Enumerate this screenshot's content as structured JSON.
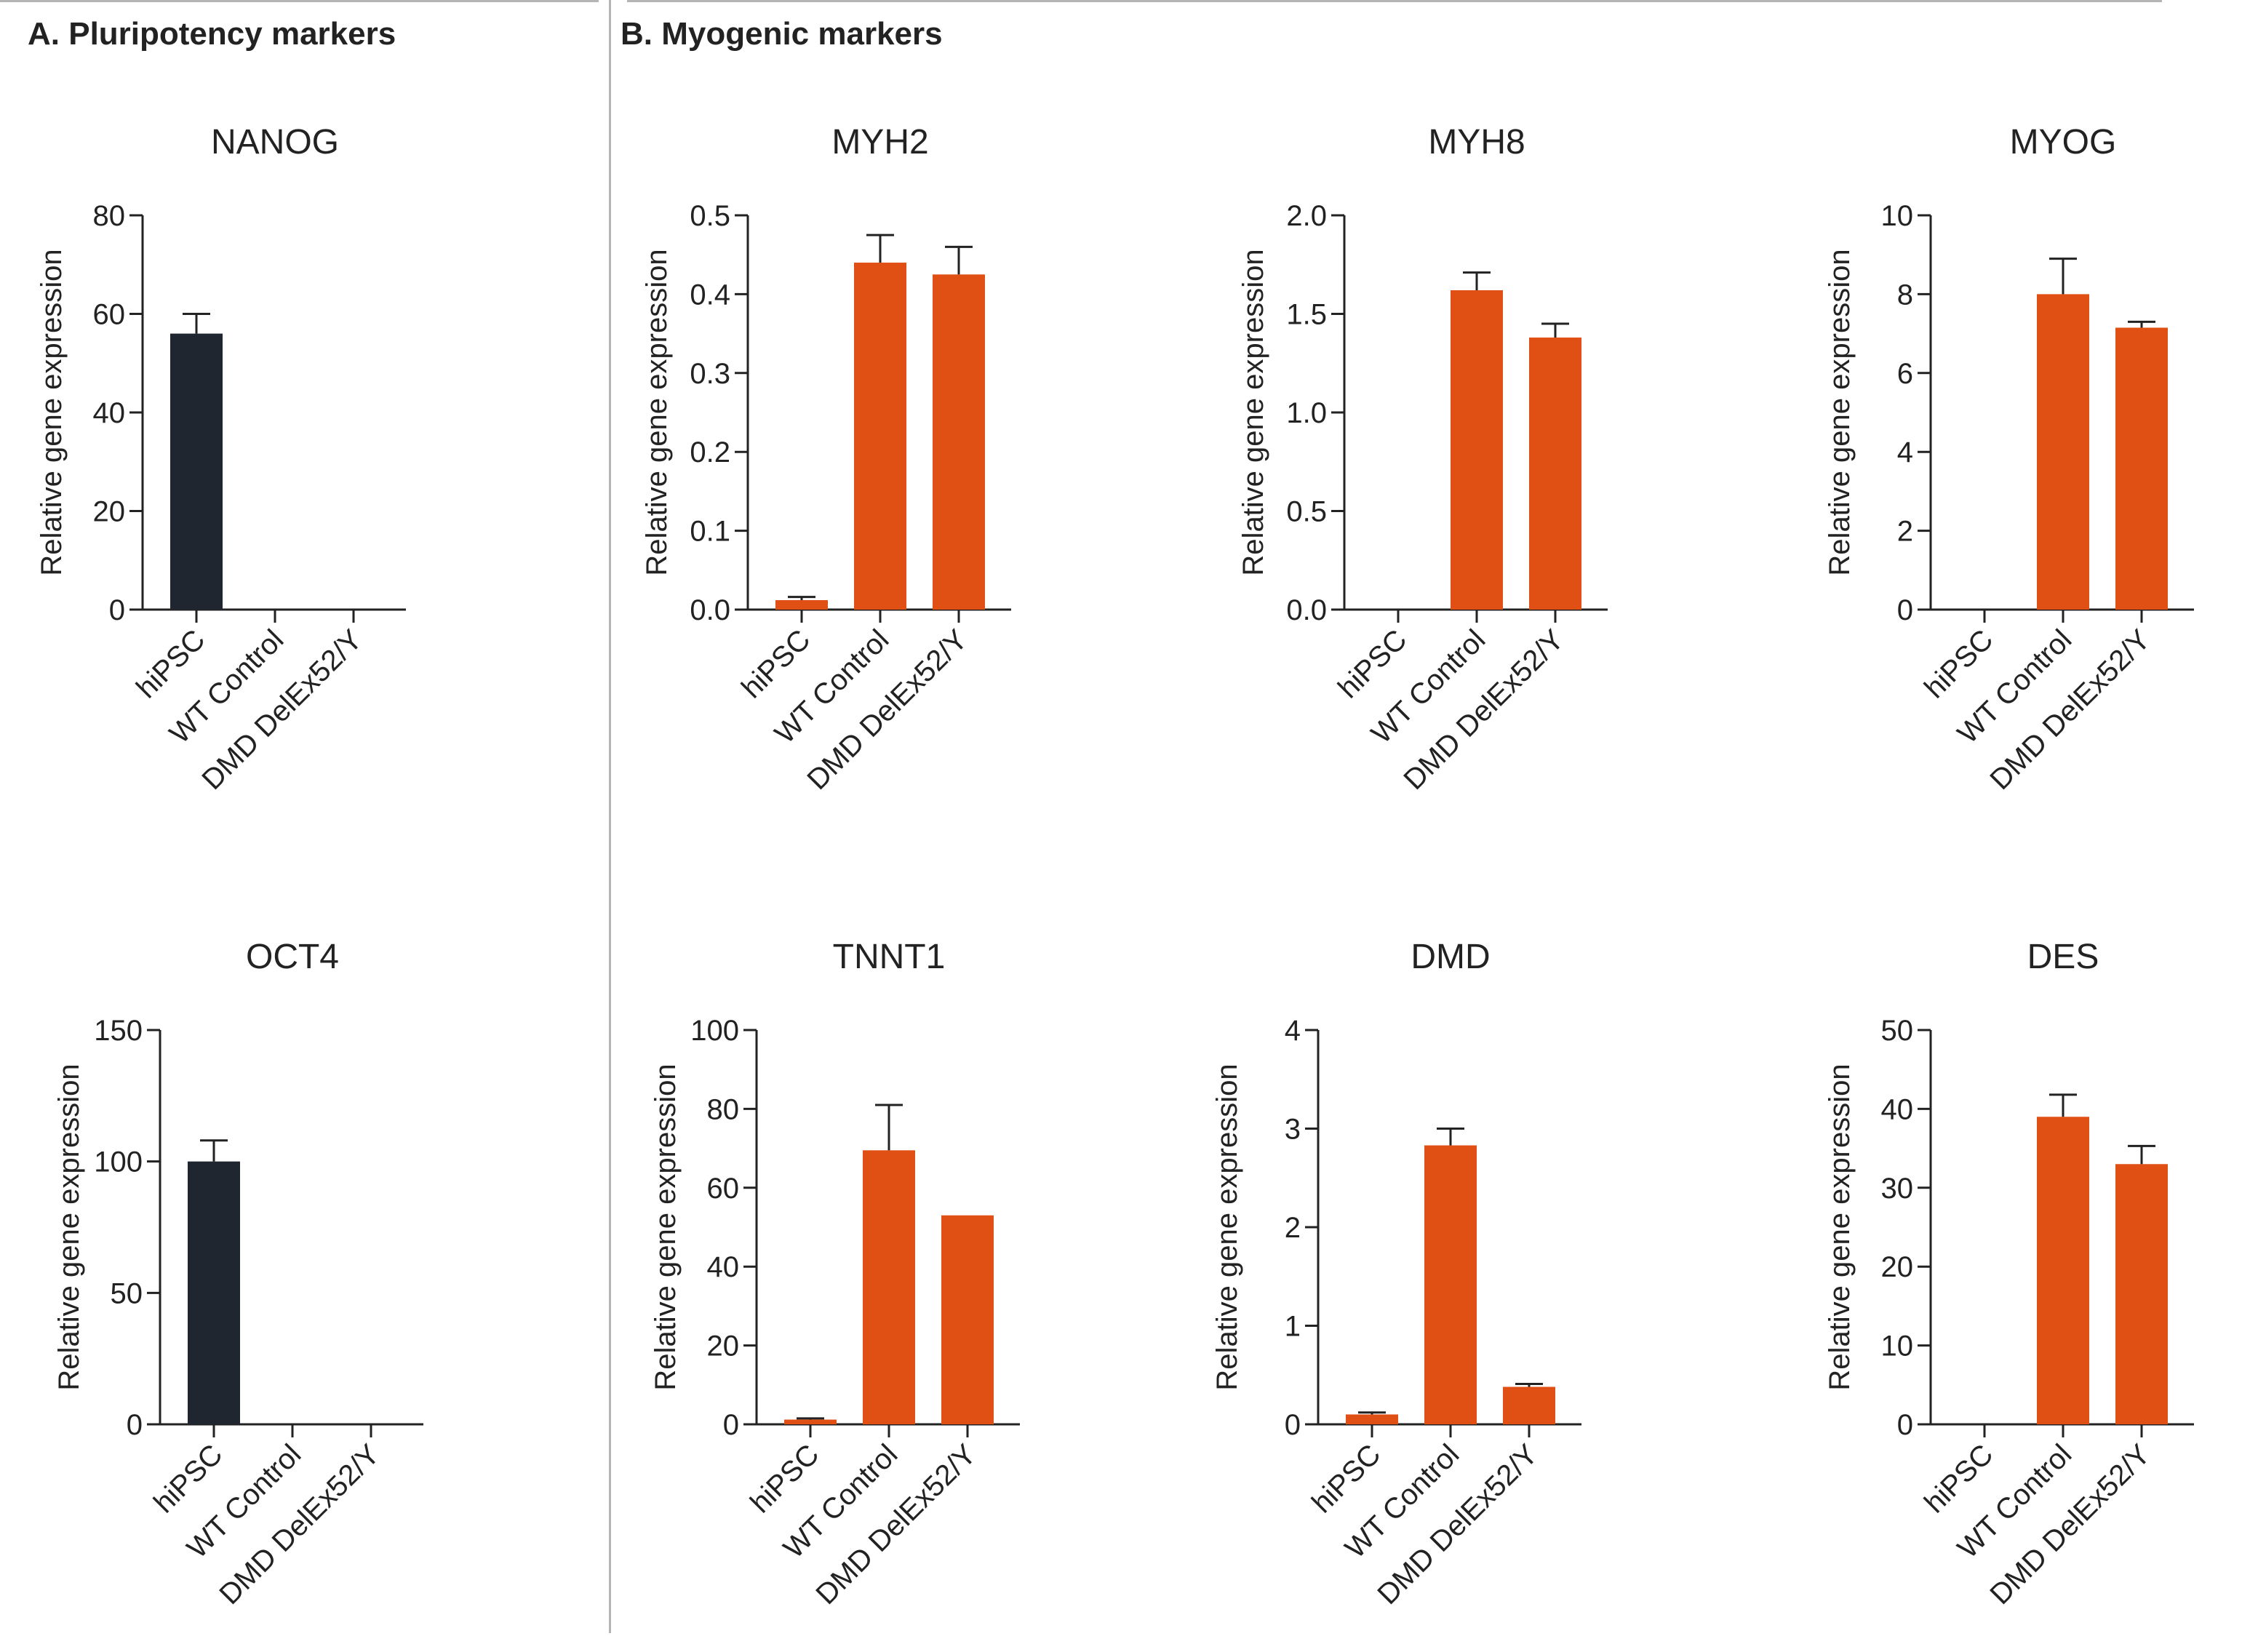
{
  "sections": {
    "a_title": "A. Pluripotency markers",
    "b_title": "B. Myogenic markers"
  },
  "colors": {
    "pluripotency_bar": "#1f2630",
    "myogenic_bar": "#e05015",
    "axis": "#222222"
  },
  "chart_data": [
    {
      "type": "bar",
      "title": "NANOG",
      "xlabel": "",
      "ylabel": "Relative gene expression",
      "categories": [
        "hiPSC",
        "WT Control",
        "DMD DelEx52/Y"
      ],
      "values": [
        56,
        0,
        0
      ],
      "errors": [
        4,
        0,
        0
      ],
      "ylim": [
        0,
        80
      ],
      "yticks": [
        "0",
        "20",
        "40",
        "60",
        "80"
      ],
      "color": "#1f2630"
    },
    {
      "type": "bar",
      "title": "MYH2",
      "xlabel": "",
      "ylabel": "Relative gene expression",
      "categories": [
        "hiPSC",
        "WT Control",
        "DMD DelEx52/Y"
      ],
      "values": [
        0.012,
        0.44,
        0.425
      ],
      "errors": [
        0.004,
        0.035,
        0.035
      ],
      "ylim": [
        0,
        0.5
      ],
      "yticks": [
        "0.0",
        "0.1",
        "0.2",
        "0.3",
        "0.4",
        "0.5"
      ],
      "color": "#e05015"
    },
    {
      "type": "bar",
      "title": "MYH8",
      "xlabel": "",
      "ylabel": "Relative gene expression",
      "categories": [
        "hiPSC",
        "WT Control",
        "DMD DelEx52/Y"
      ],
      "values": [
        0,
        1.62,
        1.38
      ],
      "errors": [
        0,
        0.09,
        0.07
      ],
      "ylim": [
        0,
        2.0
      ],
      "yticks": [
        "0.0",
        "0.5",
        "1.0",
        "1.5",
        "2.0"
      ],
      "color": "#e05015"
    },
    {
      "type": "bar",
      "title": "MYOG",
      "xlabel": "",
      "ylabel": "Relative gene expression",
      "categories": [
        "hiPSC",
        "WT Control",
        "DMD DelEx52/Y"
      ],
      "values": [
        0,
        8.0,
        7.15
      ],
      "errors": [
        0,
        0.9,
        0.15
      ],
      "ylim": [
        0,
        10
      ],
      "yticks": [
        "0",
        "2",
        "4",
        "6",
        "8",
        "10"
      ],
      "color": "#e05015"
    },
    {
      "type": "bar",
      "title": "OCT4",
      "xlabel": "",
      "ylabel": "Relative gene expression",
      "categories": [
        "hiPSC",
        "WT Control",
        "DMD DelEx52/Y"
      ],
      "values": [
        100,
        0,
        0
      ],
      "errors": [
        8,
        0,
        0
      ],
      "ylim": [
        0,
        150
      ],
      "yticks": [
        "0",
        "50",
        "100",
        "150"
      ],
      "color": "#1f2630"
    },
    {
      "type": "bar",
      "title": "TNNT1",
      "xlabel": "",
      "ylabel": "Relative gene expression",
      "categories": [
        "hiPSC",
        "WT Control",
        "DMD DelEx52/Y"
      ],
      "values": [
        1.2,
        69.5,
        53
      ],
      "errors": [
        0.3,
        11.5,
        0
      ],
      "ylim": [
        0,
        100
      ],
      "yticks": [
        "0",
        "20",
        "40",
        "60",
        "80",
        "100"
      ],
      "color": "#e05015"
    },
    {
      "type": "bar",
      "title": "DMD",
      "xlabel": "",
      "ylabel": "Relative gene expression",
      "categories": [
        "hiPSC",
        "WT Control",
        "DMD DelEx52/Y"
      ],
      "values": [
        0.1,
        2.83,
        0.38
      ],
      "errors": [
        0.02,
        0.17,
        0.03
      ],
      "ylim": [
        0,
        4
      ],
      "yticks": [
        "0",
        "1",
        "2",
        "3",
        "4"
      ],
      "color": "#e05015"
    },
    {
      "type": "bar",
      "title": "DES",
      "xlabel": "",
      "ylabel": "Relative gene expression",
      "categories": [
        "hiPSC",
        "WT Control",
        "DMD DelEx52/Y"
      ],
      "values": [
        0,
        39,
        33
      ],
      "errors": [
        0,
        2.8,
        2.3
      ],
      "ylim": [
        0,
        50
      ],
      "yticks": [
        "0",
        "10",
        "20",
        "30",
        "40",
        "50"
      ],
      "color": "#e05015"
    }
  ]
}
